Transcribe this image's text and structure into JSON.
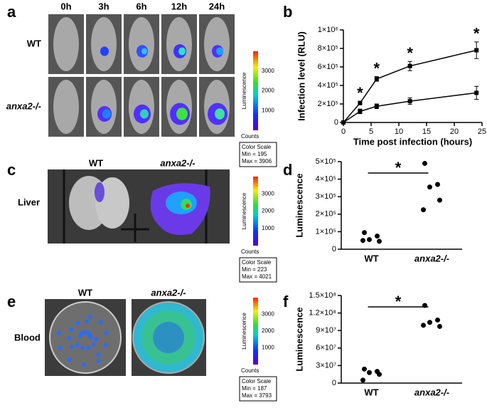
{
  "panel_labels": [
    "a",
    "b",
    "c",
    "d",
    "e",
    "f"
  ],
  "panel_a": {
    "time_points": [
      "0h",
      "3h",
      "6h",
      "12h",
      "24h"
    ],
    "rows": [
      "WT",
      "anxa2-/-"
    ],
    "colorbar": {
      "title": "Luminescence",
      "ticks": [
        1000,
        2000,
        3000
      ],
      "unit": "Counts",
      "scale_title": "Color Scale",
      "min": "Min = 195",
      "max": "Max = 3906"
    }
  },
  "panel_c": {
    "columns": [
      "WT",
      "anxa2-/-"
    ],
    "row": "Liver",
    "colorbar": {
      "title": "Luminescence",
      "ticks": [
        1000,
        2000,
        3000
      ],
      "unit": "Counts",
      "scale_title": "Color Scale",
      "min": "Min = 223",
      "max": "Max = 4021"
    }
  },
  "panel_e": {
    "columns": [
      "WT",
      "anxa2-/-"
    ],
    "row": "Blood",
    "colorbar": {
      "title": "Luminescence",
      "ticks": [
        1000,
        2000,
        3000
      ],
      "unit": "Counts",
      "scale_title": "Color Scale",
      "min": "Min = 187",
      "max": "Max = 3793"
    }
  },
  "chart_data": [
    {
      "type": "line",
      "xlabel": "Time post infection (hours)",
      "ylabel": "Infection level (RLU)",
      "xlim": [
        0,
        25
      ],
      "xticks": [
        0,
        5,
        10,
        15,
        20,
        25
      ],
      "ylim": [
        0,
        1000000
      ],
      "yticks": [
        0,
        {
          "value": 200000,
          "label": "2×10⁵"
        },
        {
          "value": 400000,
          "label": "4×10⁵"
        },
        {
          "value": 600000,
          "label": "6×10⁵"
        },
        {
          "value": 800000,
          "label": "8×10⁵"
        },
        {
          "value": 1000000,
          "label": "1×10⁶"
        }
      ],
      "series": [
        {
          "color": "#000000",
          "x": [
            0,
            3,
            6,
            12,
            24
          ],
          "values": [
            0,
            210000,
            470000,
            610000,
            780000
          ],
          "errors": [
            0,
            20000,
            25000,
            50000,
            90000
          ]
        },
        {
          "color": "#000000",
          "x": [
            0,
            3,
            6,
            12,
            24
          ],
          "values": [
            0,
            120000,
            175000,
            230000,
            320000
          ],
          "errors": [
            0,
            25000,
            25000,
            35000,
            70000
          ]
        }
      ],
      "annotations": [
        {
          "text": "*",
          "x": 3
        },
        {
          "text": "*",
          "x": 6
        },
        {
          "text": "*",
          "x": 12
        },
        {
          "text": "*",
          "x": 24
        }
      ]
    },
    {
      "type": "strip",
      "ylabel": "Luminescence",
      "categories": [
        "WT",
        "anxa2-/-"
      ],
      "color": "#000000",
      "values": [
        [
          95000,
          75000,
          55000,
          45000,
          50000
        ],
        [
          490000,
          370000,
          355000,
          280000,
          225000
        ]
      ],
      "ylim": [
        0,
        500000
      ],
      "yticks": [
        0,
        {
          "value": 100000,
          "label": "1×10⁵"
        },
        {
          "value": 200000,
          "label": "2×10⁵"
        },
        {
          "value": 300000,
          "label": "3×10⁵"
        },
        {
          "value": 400000,
          "label": "4×10⁵"
        },
        {
          "value": 500000,
          "label": "5×10⁵"
        }
      ],
      "annotation": "*"
    },
    {
      "type": "strip",
      "ylabel": "Luminescence",
      "categories": [
        "WT",
        "anxa2-/-"
      ],
      "color": "#000000",
      "values": [
        [
          24000000,
          20000000,
          18000000,
          15000000,
          5000000
        ],
        [
          133000000,
          108000000,
          104000000,
          97000000,
          99000000
        ]
      ],
      "ylim": [
        0,
        150000000
      ],
      "yticks": [
        0,
        {
          "value": 30000000,
          "label": "3×10⁷"
        },
        {
          "value": 60000000,
          "label": "6×10⁷"
        },
        {
          "value": 90000000,
          "label": "9×10⁷"
        },
        {
          "value": 120000000,
          "label": "1.2×10⁸"
        },
        {
          "value": 150000000,
          "label": "1.5×10⁸"
        }
      ],
      "annotation": "*"
    }
  ]
}
